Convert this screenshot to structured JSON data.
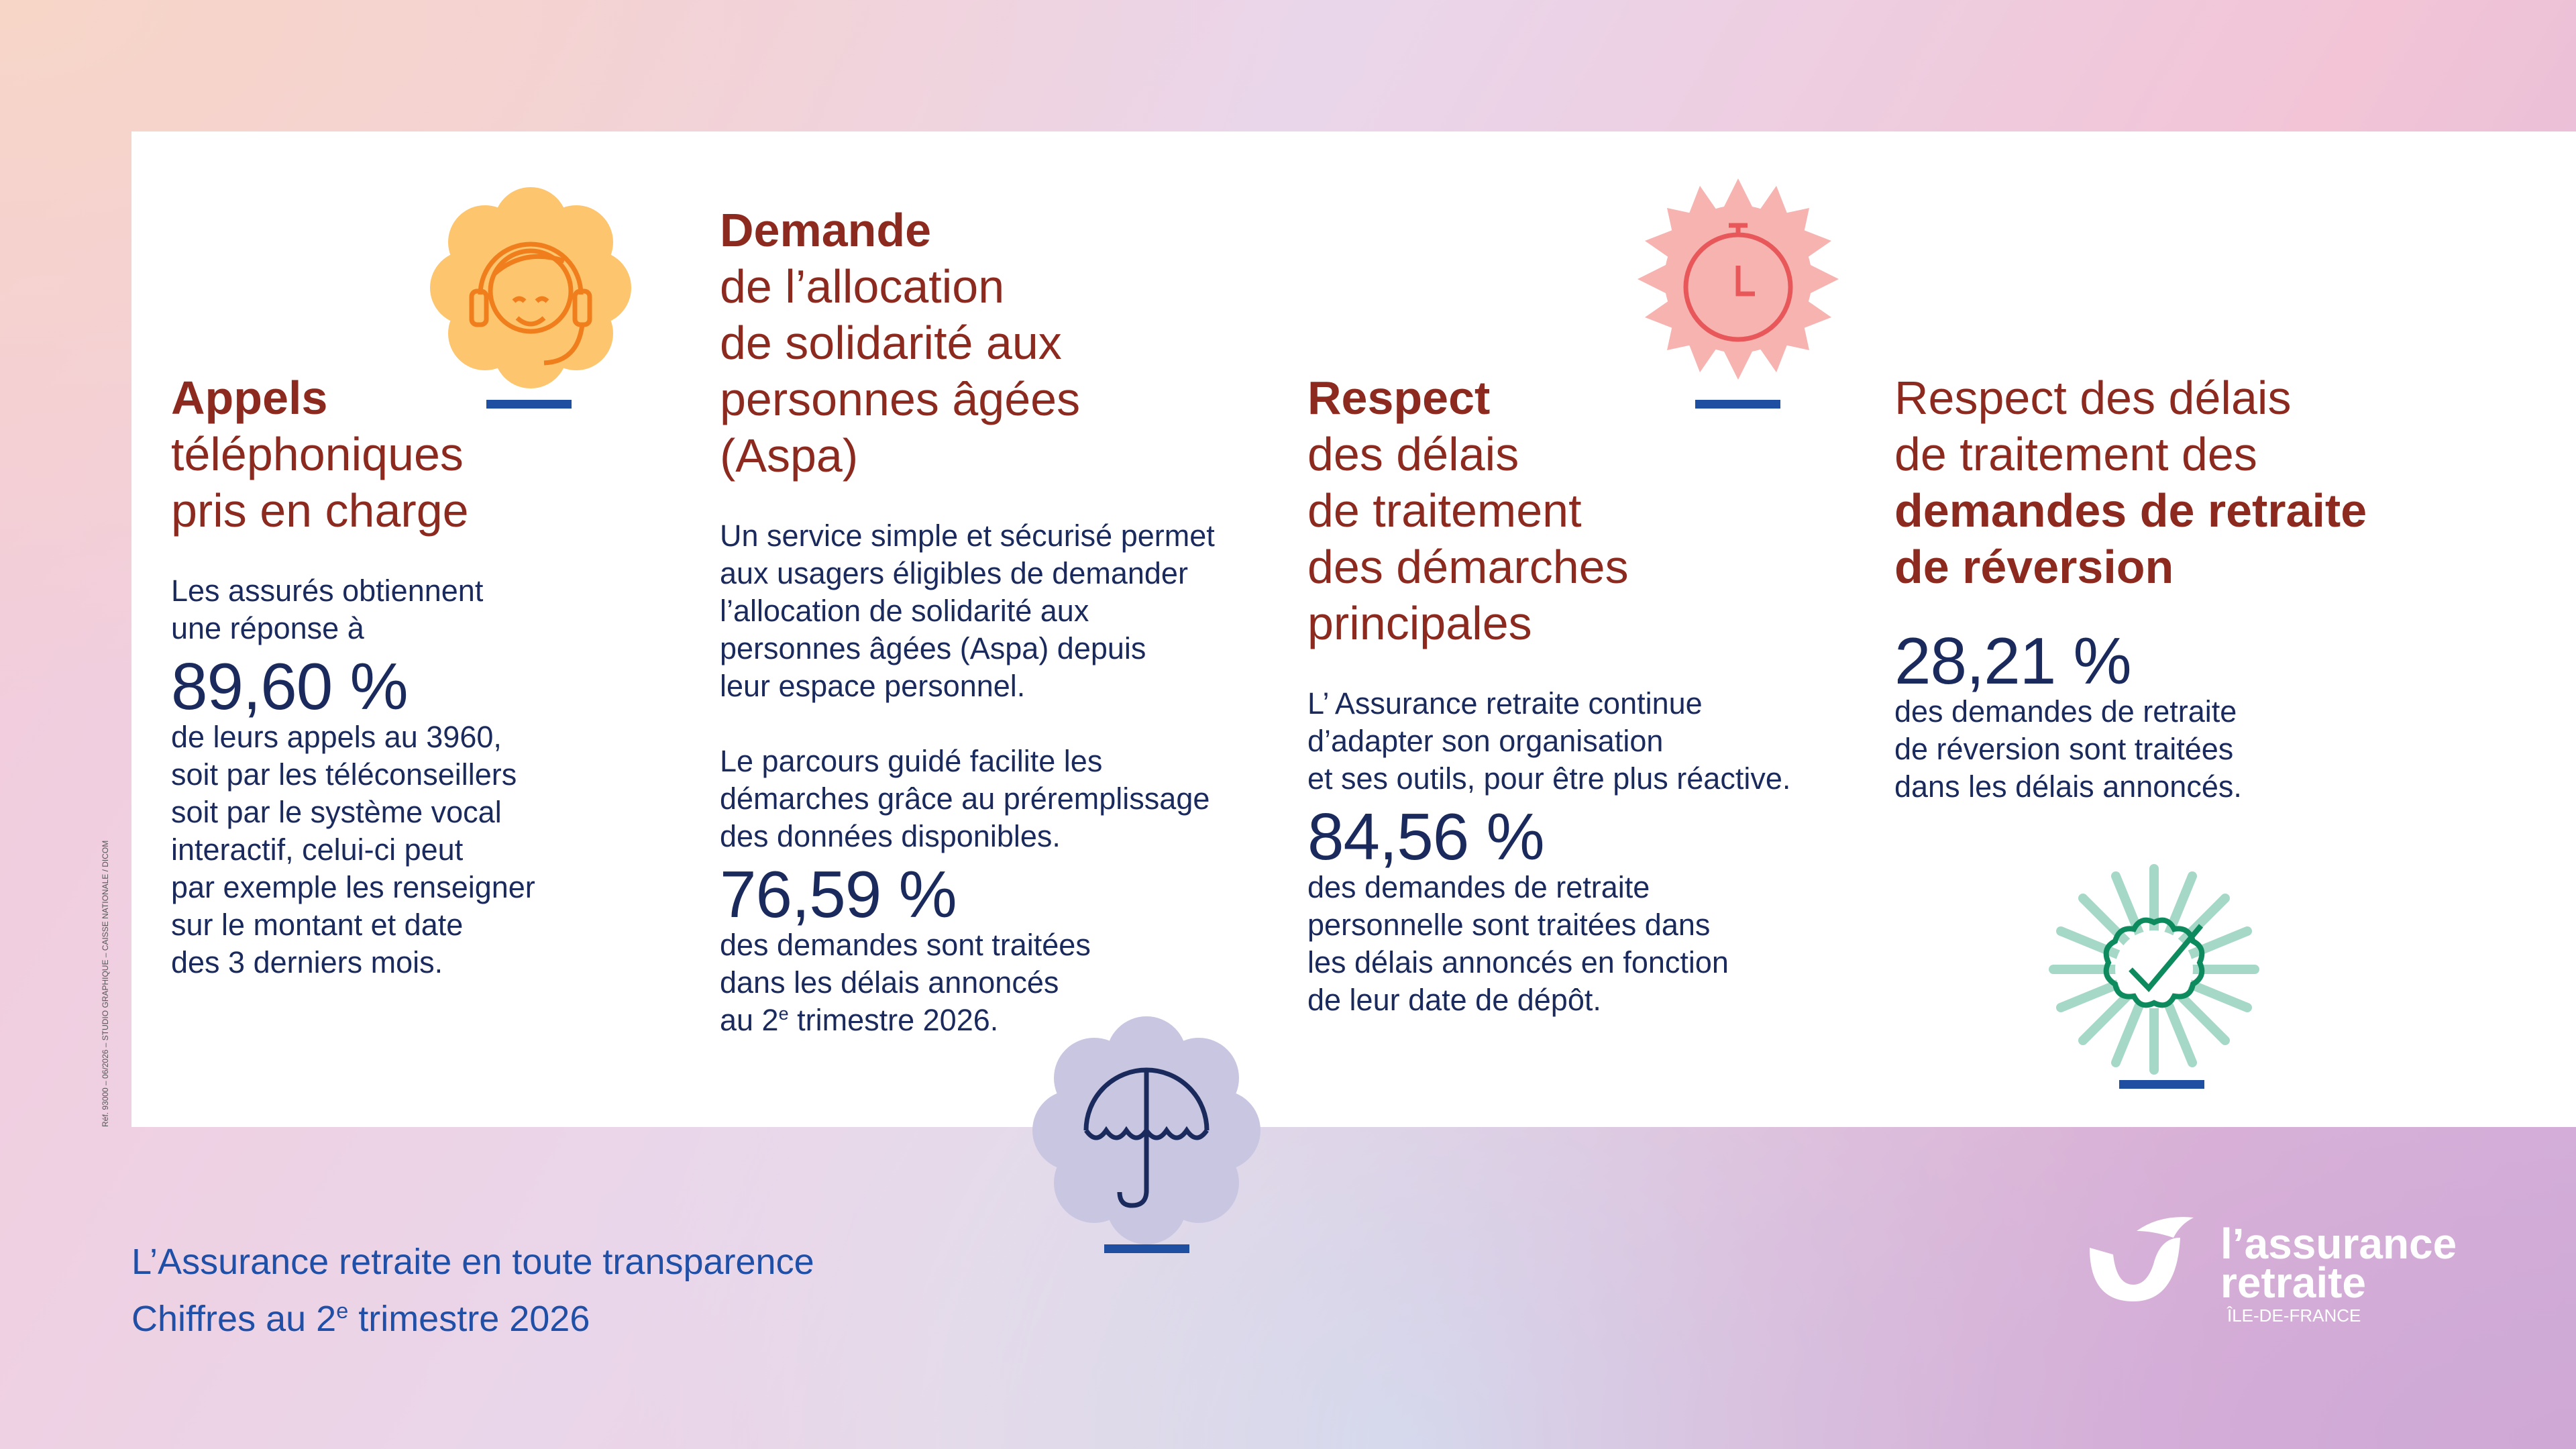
{
  "columns": [
    {
      "title_lines": [
        {
          "text": "Appels",
          "bold": true
        },
        {
          "text": "téléphoniques",
          "bold": false
        },
        {
          "text": "pris en charge",
          "bold": false
        }
      ],
      "paragraphs": [
        [
          "Les assurés obtiennent",
          "une réponse à"
        ]
      ],
      "stat": "89,60 %",
      "caption_lines": [
        "de leurs appels au 3960,",
        "soit par les téléconseillers",
        "soit par le système vocal",
        "interactif, celui-ci peut",
        "par exemple les renseigner",
        "sur le montant et date",
        "des 3 derniers mois."
      ]
    },
    {
      "title_lines": [
        {
          "text": "Demande",
          "bold": true
        },
        {
          "text": "de l’allocation",
          "bold": false
        },
        {
          "text": "de solidarité aux",
          "bold": false
        },
        {
          "text": "personnes âgées",
          "bold": false
        },
        {
          "text": "(Aspa)",
          "bold": false
        }
      ],
      "paragraphs": [
        [
          "Un service simple et sécurisé permet",
          "aux usagers éligibles de demander",
          "l’allocation de solidarité aux",
          "personnes âgées (Aspa) depuis",
          "leur espace personnel."
        ],
        [
          "Le parcours guidé facilite les",
          "démarches grâce au préremplissage",
          "des données disponibles."
        ]
      ],
      "stat": "76,59 %",
      "caption_lines": [
        "des demandes sont traitées",
        "dans les délais annoncés",
        [
          {
            "text": "au 2"
          },
          {
            "text": "e",
            "sup": true
          },
          {
            "text": " trimestre 2026."
          }
        ]
      ]
    },
    {
      "title_lines": [
        {
          "text": "Respect",
          "bold": true
        },
        {
          "text": "des délais",
          "bold": false
        },
        {
          "text": "de traitement",
          "bold": false
        },
        {
          "text": "des démarches",
          "bold": false
        },
        {
          "text": "principales",
          "bold": false
        }
      ],
      "paragraphs": [
        [
          "L’ Assurance retraite continue",
          "d’adapter son organisation",
          "et ses outils, pour être plus réactive."
        ]
      ],
      "stat": "84,56 %",
      "caption_lines": [
        "des demandes de retraite",
        "personnelle sont traitées dans",
        "les délais annoncés en fonction",
        "de leur date de dépôt."
      ]
    },
    {
      "title_lines": [
        {
          "text": "Respect des délais",
          "bold": false
        },
        {
          "text": "de traitement des",
          "bold": false
        },
        {
          "text": "demandes de retraite",
          "bold": true
        },
        {
          "text": "de réversion",
          "bold": true
        }
      ],
      "paragraphs": [],
      "stat": "28,21 %",
      "caption_lines": [
        "des demandes de retraite",
        "de réversion sont traitées",
        "dans les délais annoncés."
      ]
    }
  ],
  "footer": {
    "line1": "L’Assurance retraite en toute transparence",
    "line2": [
      {
        "text": "Chiffres au 2"
      },
      {
        "text": "e",
        "sup": true
      },
      {
        "text": " trimestre 2026"
      }
    ]
  },
  "logo": {
    "line1": "l’assurance",
    "line2": "retraite",
    "region": "ÎLE-DE-FRANCE"
  },
  "reference": "Réf. 93000 – 06/2026 – STUDIO GRAPHIQUE – CAISSE NATIONALE / DICOM"
}
